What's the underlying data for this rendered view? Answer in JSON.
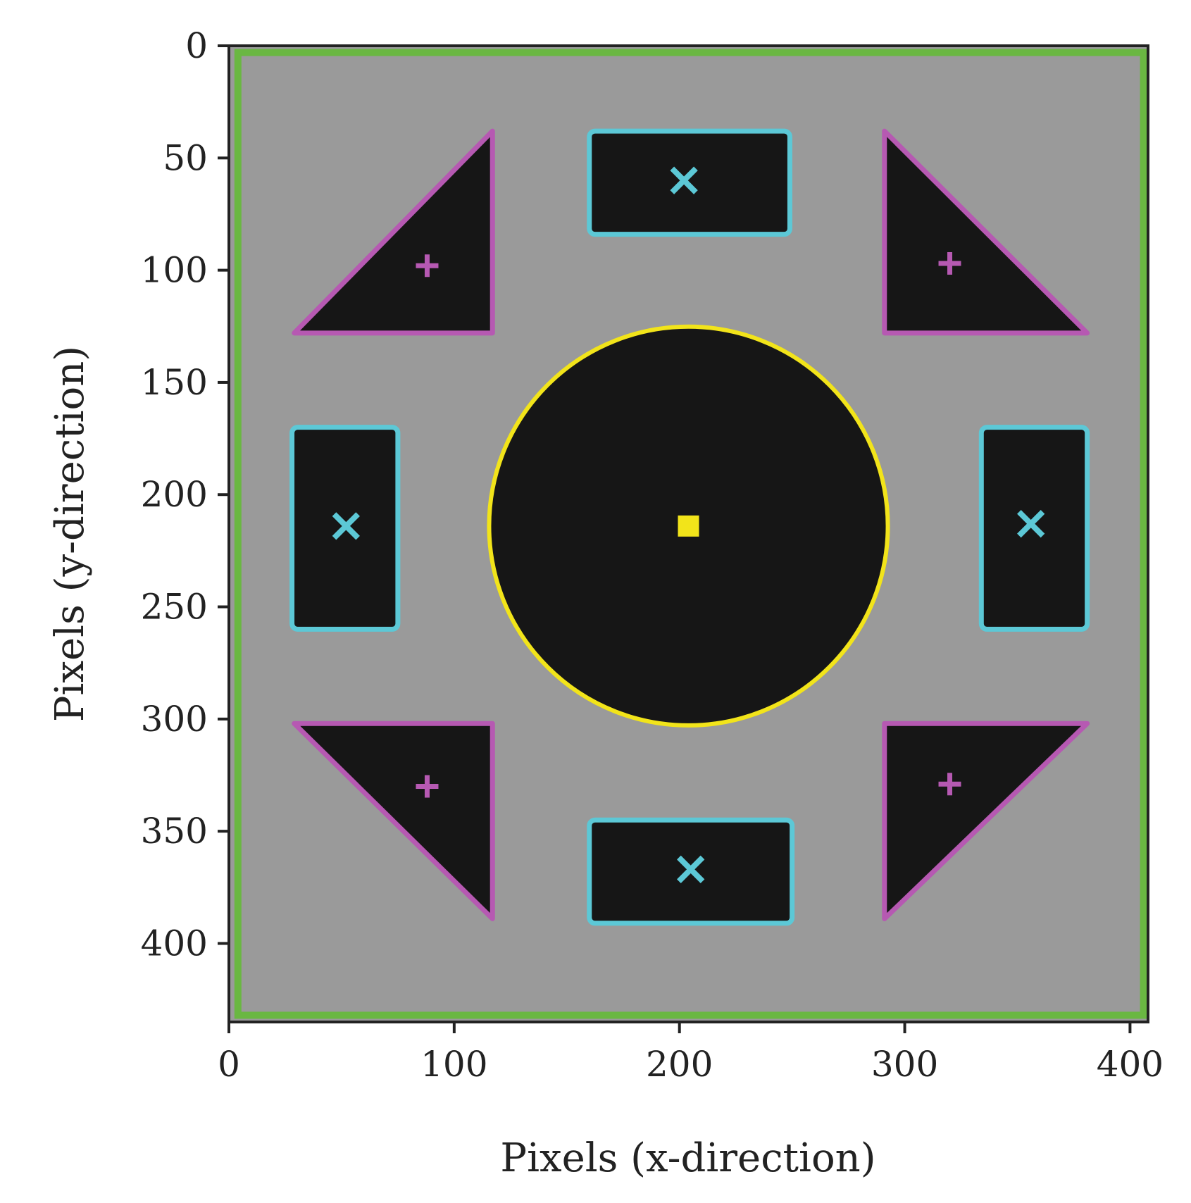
{
  "chart_data": {
    "type": "image-annotation",
    "xlabel": "Pixels (x-direction)",
    "ylabel": "Pixels (y-direction)",
    "xlim": [
      0,
      408
    ],
    "ylim": [
      435,
      0
    ],
    "xticks": [
      0,
      100,
      200,
      300,
      400
    ],
    "yticks": [
      0,
      50,
      100,
      150,
      200,
      250,
      300,
      350,
      400
    ],
    "grid": false,
    "background": "grayscale photo of a plate (mid gray) with black shapes",
    "colors": {
      "plate": "#9a9a9a",
      "shape_fill": "#161616",
      "border": "#6ab742",
      "circle": "#f2e41a",
      "rectangle": "#5cc8d6",
      "triangle": "#b659b2",
      "axis": "#222222"
    },
    "border_outline": {
      "x0": 4,
      "y0": 3,
      "x1": 406,
      "y1": 432
    },
    "circle": {
      "center": [
        204,
        214
      ],
      "radius": 88.5,
      "centroid_marker": "square"
    },
    "rectangles": [
      {
        "x0": 160,
        "y0": 38,
        "x1": 249,
        "y1": 84,
        "centroid": [
          202,
          60
        ],
        "marker": "x"
      },
      {
        "x0": 28,
        "y0": 170,
        "x1": 75,
        "y1": 260,
        "centroid": [
          52,
          214
        ],
        "marker": "x"
      },
      {
        "x0": 334,
        "y0": 170,
        "x1": 381,
        "y1": 260,
        "centroid": [
          356,
          213
        ],
        "marker": "x"
      },
      {
        "x0": 160,
        "y0": 345,
        "x1": 250,
        "y1": 391,
        "centroid": [
          205,
          367
        ],
        "marker": "x"
      }
    ],
    "triangles": [
      {
        "points": [
          [
            117,
            38
          ],
          [
            117,
            128
          ],
          [
            29,
            128
          ]
        ],
        "centroid": [
          88,
          98
        ],
        "marker": "+"
      },
      {
        "points": [
          [
            291,
            38
          ],
          [
            291,
            128
          ],
          [
            381,
            128
          ]
        ],
        "centroid": [
          320,
          97
        ],
        "marker": "+"
      },
      {
        "points": [
          [
            29,
            302
          ],
          [
            117,
            302
          ],
          [
            117,
            389
          ]
        ],
        "centroid": [
          88,
          330
        ],
        "marker": "+"
      },
      {
        "points": [
          [
            291,
            302
          ],
          [
            381,
            302
          ],
          [
            291,
            389
          ]
        ],
        "centroid": [
          320,
          329
        ],
        "marker": "+"
      }
    ]
  }
}
